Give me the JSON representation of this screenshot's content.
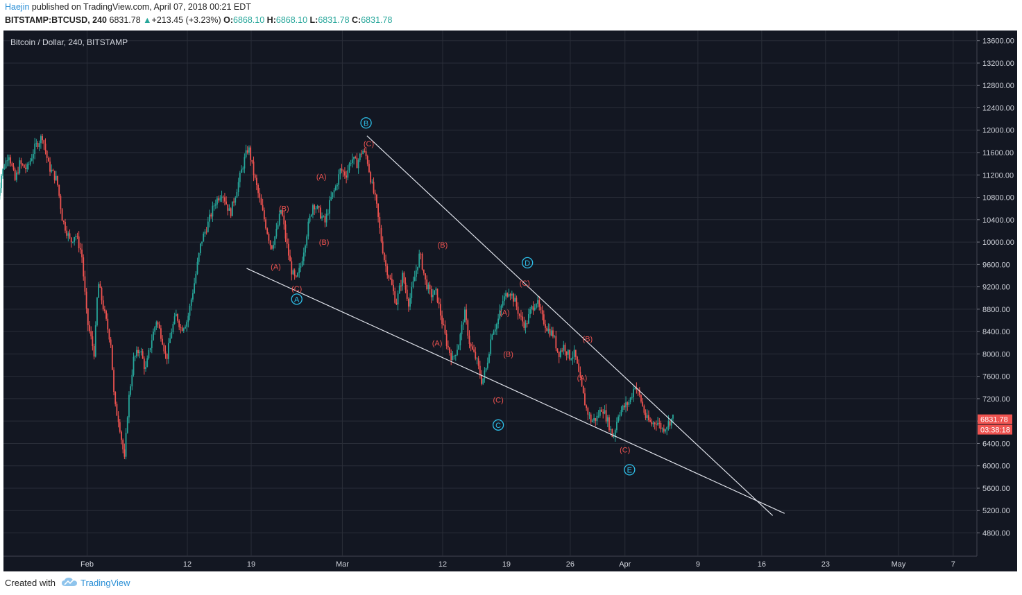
{
  "header": {
    "user": "Haejin",
    "published": "published on TradingView.com, April 07, 2018 00:21 EDT",
    "symbol": "BITSTAMP:BTCUSD, 240",
    "last": "6831.78",
    "change_arrow": "▲",
    "change": "+213.45 (+3.23%)",
    "o_label": "O:",
    "o_value": "6868.10",
    "h_label": "H:",
    "h_value": "6868.10",
    "l_label": "L:",
    "l_value": "6831.78",
    "c_label": "C:",
    "c_value": "6831.78"
  },
  "footer": {
    "created_with": "Created with",
    "brand": "TradingView"
  },
  "colors": {
    "background": "#131722",
    "grid": "#2a2e39",
    "up": "#26a69a",
    "down": "#ef5350",
    "wave_label": "#ef5350",
    "circle_label": "#2ec0ea",
    "trendline": "#e0e3eb",
    "price_tag": "#ef5350"
  },
  "chart_data": {
    "type": "candlestick",
    "title": "Bitcoin / Dollar, 240, BITSTAMP",
    "interval": "240",
    "y_axis": {
      "ticks": [
        4800,
        5200,
        5600,
        6000,
        6400,
        6800,
        7200,
        7600,
        8000,
        8400,
        8800,
        9200,
        9600,
        10000,
        10400,
        10800,
        11200,
        11600,
        12000,
        12400,
        12800,
        13200,
        13600
      ],
      "tick_labels": [
        "4800.00",
        "5200.00",
        "5600.00",
        "6000.00",
        "6400.00",
        "6800.00",
        "7200.00",
        "7600.00",
        "8000.00",
        "8400.00",
        "8800.00",
        "9200.00",
        "9600.00",
        "10000.00",
        "10400.00",
        "10800.00",
        "11200.00",
        "11600.00",
        "12000.00",
        "12400.00",
        "12800.00",
        "13200.00",
        "13600.00"
      ]
    },
    "x_axis": {
      "ticks": [
        {
          "label": "Feb",
          "day": 32
        },
        {
          "label": "12",
          "day": 43
        },
        {
          "label": "19",
          "day": 50
        },
        {
          "label": "Mar",
          "day": 60
        },
        {
          "label": "12",
          "day": 71
        },
        {
          "label": "19",
          "day": 78
        },
        {
          "label": "26",
          "day": 85
        },
        {
          "label": "Apr",
          "day": 91
        },
        {
          "label": "9",
          "day": 99
        },
        {
          "label": "16",
          "day": 106
        },
        {
          "label": "23",
          "day": 113
        },
        {
          "label": "May",
          "day": 121
        },
        {
          "label": "7",
          "day": 127
        }
      ]
    },
    "price_path": [
      [
        22.1,
        10700
      ],
      [
        22.6,
        11200
      ],
      [
        23.4,
        11600
      ],
      [
        24.1,
        11100
      ],
      [
        24.6,
        11400
      ],
      [
        25.4,
        11300
      ],
      [
        26.3,
        11700
      ],
      [
        27.1,
        11900
      ],
      [
        27.8,
        11350
      ],
      [
        28.7,
        11100
      ],
      [
        29.3,
        10400
      ],
      [
        30.2,
        10000
      ],
      [
        30.7,
        10150
      ],
      [
        31.4,
        9800
      ],
      [
        32.0,
        8600
      ],
      [
        32.8,
        8000
      ],
      [
        33.2,
        9300
      ],
      [
        34.0,
        8650
      ],
      [
        34.6,
        8200
      ],
      [
        35.0,
        7100
      ],
      [
        35.5,
        6800
      ],
      [
        36.1,
        6100
      ],
      [
        36.5,
        7100
      ],
      [
        37.1,
        7900
      ],
      [
        37.8,
        8100
      ],
      [
        38.4,
        7700
      ],
      [
        39.0,
        8200
      ],
      [
        39.6,
        8600
      ],
      [
        40.2,
        8300
      ],
      [
        40.7,
        7900
      ],
      [
        41.3,
        8450
      ],
      [
        41.8,
        8700
      ],
      [
        42.3,
        8450
      ],
      [
        43.0,
        8600
      ],
      [
        43.8,
        9300
      ],
      [
        44.5,
        10000
      ],
      [
        45.2,
        10300
      ],
      [
        46.0,
        10700
      ],
      [
        46.8,
        10900
      ],
      [
        47.7,
        10500
      ],
      [
        48.5,
        11000
      ],
      [
        49.3,
        11500
      ],
      [
        49.7,
        11700
      ],
      [
        50.3,
        11200
      ],
      [
        51.0,
        10700
      ],
      [
        51.6,
        10300
      ],
      [
        52.2,
        9900
      ],
      [
        52.8,
        10200
      ],
      [
        53.3,
        10600
      ],
      [
        53.8,
        10050
      ],
      [
        54.4,
        9500
      ],
      [
        54.9,
        9300
      ],
      [
        55.4,
        9550
      ],
      [
        56.2,
        10250
      ],
      [
        56.8,
        10700
      ],
      [
        57.4,
        10550
      ],
      [
        58.1,
        10350
      ],
      [
        58.7,
        10750
      ],
      [
        59.3,
        11000
      ],
      [
        59.8,
        11300
      ],
      [
        60.4,
        11200
      ],
      [
        61.0,
        11500
      ],
      [
        61.6,
        11400
      ],
      [
        62.2,
        11650
      ],
      [
        62.7,
        11500
      ],
      [
        63.2,
        11050
      ],
      [
        63.7,
        10700
      ],
      [
        64.2,
        10100
      ],
      [
        64.7,
        9600
      ],
      [
        65.3,
        9300
      ],
      [
        65.9,
        8900
      ],
      [
        66.6,
        9400
      ],
      [
        67.3,
        8900
      ],
      [
        67.9,
        9350
      ],
      [
        68.5,
        9800
      ],
      [
        69.1,
        9300
      ],
      [
        69.7,
        9050
      ],
      [
        70.3,
        9100
      ],
      [
        70.9,
        8600
      ],
      [
        71.5,
        8150
      ],
      [
        72.1,
        7900
      ],
      [
        72.8,
        8200
      ],
      [
        73.4,
        8750
      ],
      [
        74.0,
        8150
      ],
      [
        74.7,
        7900
      ],
      [
        75.3,
        7500
      ],
      [
        75.8,
        7750
      ],
      [
        76.4,
        8400
      ],
      [
        77.0,
        8550
      ],
      [
        77.6,
        8950
      ],
      [
        78.3,
        9150
      ],
      [
        78.9,
        8950
      ],
      [
        79.5,
        8650
      ],
      [
        80.1,
        8500
      ],
      [
        80.7,
        8800
      ],
      [
        81.3,
        8950
      ],
      [
        81.9,
        8650
      ],
      [
        82.5,
        8450
      ],
      [
        83.1,
        8350
      ],
      [
        83.7,
        8000
      ],
      [
        84.3,
        8150
      ],
      [
        84.9,
        7950
      ],
      [
        85.5,
        8000
      ],
      [
        86.1,
        7500
      ],
      [
        86.7,
        7050
      ],
      [
        87.3,
        6800
      ],
      [
        87.9,
        6850
      ],
      [
        88.5,
        7050
      ],
      [
        89.1,
        6800
      ],
      [
        89.7,
        6500
      ],
      [
        90.3,
        6950
      ],
      [
        90.9,
        7050
      ],
      [
        91.5,
        7150
      ],
      [
        92.1,
        7450
      ],
      [
        92.7,
        7200
      ],
      [
        93.3,
        6850
      ],
      [
        93.9,
        6750
      ],
      [
        94.5,
        6800
      ],
      [
        95.1,
        6650
      ],
      [
        95.7,
        6750
      ],
      [
        96.3,
        6870
      ]
    ],
    "last_price": "6831.78",
    "countdown": "03:38:18",
    "wave_labels": [
      {
        "text": "(B)",
        "day": 53.6,
        "price": 10600
      },
      {
        "text": "(A)",
        "day": 52.7,
        "price": 9560
      },
      {
        "text": "(C)",
        "day": 55.0,
        "price": 9170
      },
      {
        "text": "(A)",
        "day": 57.7,
        "price": 11170
      },
      {
        "text": "(B)",
        "day": 58.0,
        "price": 10000
      },
      {
        "text": "(C)",
        "day": 62.9,
        "price": 11760
      },
      {
        "text": "(B)",
        "day": 71.0,
        "price": 9950
      },
      {
        "text": "(A)",
        "day": 70.4,
        "price": 8200
      },
      {
        "text": "(A)",
        "day": 77.8,
        "price": 8740
      },
      {
        "text": "(B)",
        "day": 78.2,
        "price": 8000
      },
      {
        "text": "(C)",
        "day": 77.1,
        "price": 7180
      },
      {
        "text": "(C)",
        "day": 80.0,
        "price": 9270
      },
      {
        "text": "(B)",
        "day": 86.9,
        "price": 8270
      },
      {
        "text": "(A)",
        "day": 86.3,
        "price": 7580
      },
      {
        "text": "(C)",
        "day": 91.0,
        "price": 6290
      }
    ],
    "circle_labels": [
      {
        "text": "A",
        "day": 55.0,
        "price": 8980
      },
      {
        "text": "B",
        "day": 62.6,
        "price": 12130
      },
      {
        "text": "C",
        "day": 77.1,
        "price": 6730
      },
      {
        "text": "D",
        "day": 80.3,
        "price": 9630
      },
      {
        "text": "E",
        "day": 91.5,
        "price": 5930
      }
    ],
    "trendlines": [
      {
        "from": {
          "day": 49.5,
          "price": 9530
        },
        "to": {
          "day": 108.5,
          "price": 5150
        }
      },
      {
        "from": {
          "day": 62.7,
          "price": 11900
        },
        "to": {
          "day": 107.2,
          "price": 5110
        }
      }
    ]
  }
}
